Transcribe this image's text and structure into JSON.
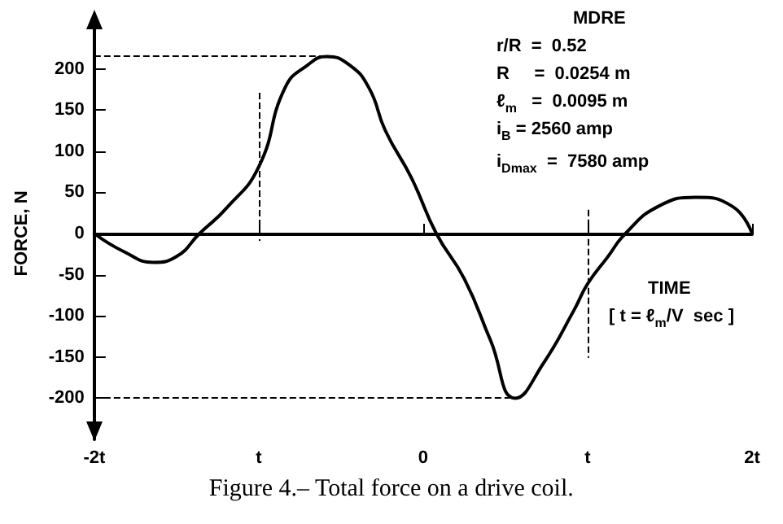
{
  "chart_data": {
    "type": "line",
    "title": "Figure 4.– Total force on a drive coil.",
    "xlabel": "TIME",
    "ylabel": "FORCE, N",
    "annotations": [
      "MDRE",
      "r/R  =  0.52",
      "R     =  0.0254 m",
      "ℓ$_{m}$   =  0.0095 m",
      "i$_{B}$ = 2560 amp",
      "i$_{Dmax}$  =  7580 amp",
      "[ t = ℓ$_{m}$/V  sec ]"
    ],
    "x": [
      -2,
      -1.82,
      -1.64,
      -1.5,
      -1.36,
      -1.2,
      -1,
      -0.84,
      -0.7,
      -0.587,
      -0.45,
      -0.33,
      -0.23,
      -0.07,
      0.08,
      0.25,
      0.41,
      0.56,
      0.73,
      0.92,
      1,
      1.12,
      1.23,
      1.43,
      1.66,
      1.88,
      2
    ],
    "values": [
      0,
      -22,
      -35,
      -28,
      0,
      30,
      81,
      177,
      205,
      215,
      205,
      177,
      125,
      67,
      0,
      -55,
      -130,
      -200,
      -158,
      -92,
      -61,
      -29,
      0,
      33,
      44,
      33,
      0
    ],
    "color": "#000000",
    "marker": "none",
    "line_style": "solid",
    "xlim": [
      -2,
      2
    ],
    "xticks": [
      {
        "value": -2,
        "label": "-2t"
      },
      {
        "value": -1,
        "label": "t"
      },
      0,
      {
        "value": 1,
        "label": "t"
      },
      {
        "value": 2,
        "label": "2t"
      }
    ],
    "ylim": [
      -250,
      250
    ],
    "yticks": [
      -200,
      -150,
      -100,
      -50,
      0,
      50,
      100,
      150,
      200
    ],
    "ref_lines": [
      {
        "axis": "y",
        "value": 215,
        "line_style": "dashed"
      },
      {
        "axis": "y",
        "value": -200,
        "line_style": "dashed"
      },
      {
        "axis": "x",
        "value": -1,
        "line_style": "dashed"
      },
      {
        "axis": "x",
        "value": 1,
        "line_style": "dashed"
      }
    ]
  }
}
